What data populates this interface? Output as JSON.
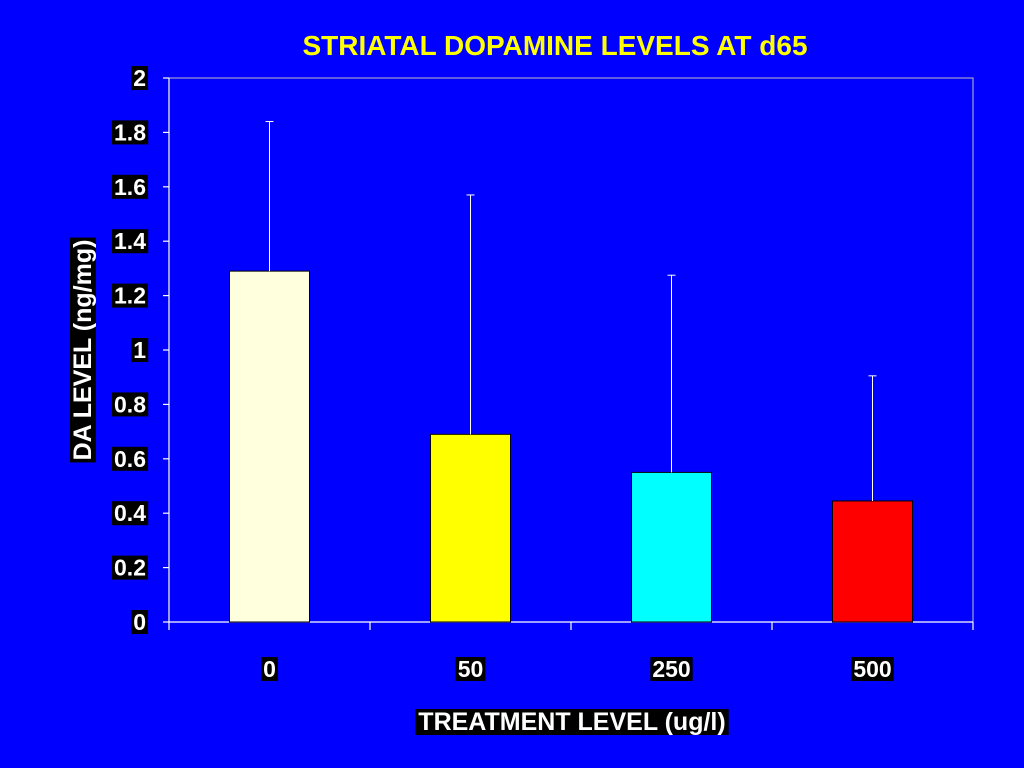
{
  "chart_data": {
    "type": "bar",
    "title": "STRIATAL DOPAMINE LEVELS AT d65",
    "xlabel": "TREATMENT LEVEL (ug/l)",
    "ylabel": "DA LEVEL (ng/mg)",
    "categories": [
      "0",
      "50",
      "250",
      "500"
    ],
    "values": [
      1.29,
      0.69,
      0.55,
      0.445
    ],
    "error_upper": [
      1.84,
      1.57,
      1.275,
      0.905
    ],
    "bar_colors": [
      "#ffffdd",
      "#ffff00",
      "#00ffff",
      "#ff0000"
    ],
    "ylim": [
      0,
      2
    ],
    "yticks": [
      "0",
      "0.2",
      "0.4",
      "0.6",
      "0.8",
      "1",
      "1.2",
      "1.4",
      "1.6",
      "1.8",
      "2"
    ],
    "grid": false,
    "legend": "none",
    "colors": {
      "background": "#0000ff",
      "title": "#ffff00",
      "label_text": "#ffffff",
      "label_box": "#000000",
      "axis": "#ffffff",
      "plot_border": "#c0c0c0",
      "bar_outline": "#000000",
      "error_bar": "#ffffff"
    }
  }
}
